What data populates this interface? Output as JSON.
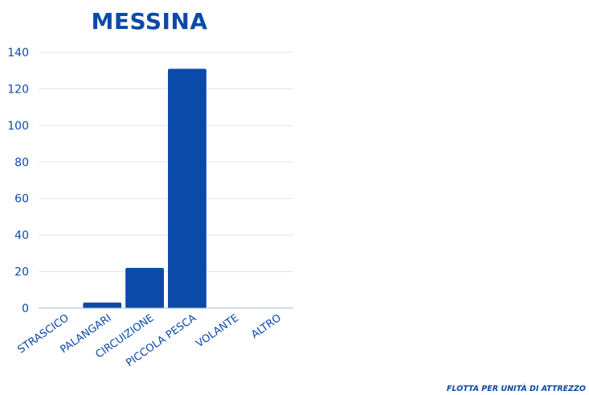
{
  "chart_data": {
    "type": "bar",
    "title": "MESSINA",
    "categories": [
      "STRASCICO",
      "PALANGARI",
      "CIRCUIZIONE",
      "PICCOLA PESCA",
      "VOLANTE",
      "ALTRO"
    ],
    "values": [
      0,
      3,
      22,
      131,
      0,
      0
    ],
    "ylim": [
      0,
      140
    ],
    "yticks": [
      0,
      20,
      40,
      60,
      80,
      100,
      120,
      140
    ],
    "grid": true,
    "bar_color": "#0b4aa8",
    "text_color": "#0b4aa8",
    "grid_color": "#dfe3ea",
    "axis_color": "#9fb6d8"
  },
  "footer": {
    "caption": "FLOTTA PER UNITÀ DI ATTREZZO"
  }
}
